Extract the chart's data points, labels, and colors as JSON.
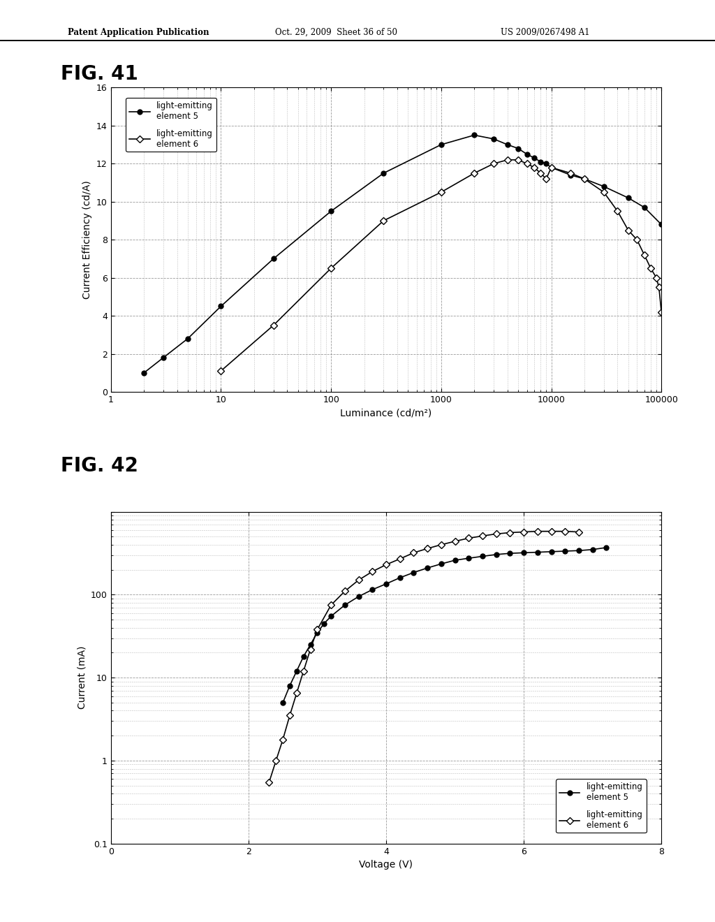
{
  "header_left": "Patent Application Publication",
  "header_mid": "Oct. 29, 2009  Sheet 36 of 50",
  "header_right": "US 2009/0267498 A1",
  "fig41_label": "FIG. 41",
  "fig42_label": "FIG. 42",
  "fig41": {
    "xlabel": "Luminance (cd/m²)",
    "ylabel": "Current Efficiency (cd/A)",
    "ylim": [
      0,
      16
    ],
    "yticks": [
      0,
      2,
      4,
      6,
      8,
      10,
      12,
      14,
      16
    ],
    "xticks": [
      1,
      10,
      100,
      1000,
      10000,
      100000
    ],
    "xticklabels": [
      "1",
      "10",
      "100",
      "1000",
      "10000",
      "100000"
    ],
    "legend1": "light-emitting\nelement 5",
    "legend2": "light-emitting\nelement 6",
    "elem5_x": [
      2,
      3,
      5,
      10,
      30,
      100,
      300,
      1000,
      2000,
      3000,
      4000,
      5000,
      6000,
      7000,
      8000,
      9000,
      10000,
      15000,
      20000,
      30000,
      50000,
      70000,
      100000
    ],
    "elem5_y": [
      1.0,
      1.8,
      2.8,
      4.5,
      7.0,
      9.5,
      11.5,
      13.0,
      13.5,
      13.3,
      13.0,
      12.8,
      12.5,
      12.3,
      12.1,
      12.0,
      11.8,
      11.4,
      11.2,
      10.8,
      10.2,
      9.7,
      8.8
    ],
    "elem6_x": [
      10,
      30,
      100,
      300,
      1000,
      2000,
      3000,
      4000,
      5000,
      6000,
      7000,
      8000,
      9000,
      10000,
      15000,
      20000,
      30000,
      40000,
      50000,
      60000,
      70000,
      80000,
      90000,
      95000,
      100000
    ],
    "elem6_y": [
      1.1,
      3.5,
      6.5,
      9.0,
      10.5,
      11.5,
      12.0,
      12.2,
      12.2,
      12.0,
      11.8,
      11.5,
      11.2,
      11.8,
      11.5,
      11.2,
      10.5,
      9.5,
      8.5,
      8.0,
      7.2,
      6.5,
      6.0,
      5.5,
      4.2
    ]
  },
  "fig42": {
    "xlabel": "Voltage (V)",
    "ylabel": "Current (mA)",
    "ylim_log": [
      0.01,
      100
    ],
    "xlim": [
      0,
      8
    ],
    "xticks": [
      0,
      2,
      4,
      6,
      8
    ],
    "legend1": "light-emitting\nelement 5",
    "legend2": "light-emitting\nelement 6",
    "elem5_x": [
      2.5,
      2.6,
      2.7,
      2.8,
      2.9,
      3.0,
      3.1,
      3.2,
      3.4,
      3.6,
      3.8,
      4.0,
      4.2,
      4.4,
      4.6,
      4.8,
      5.0,
      5.2,
      5.4,
      5.6,
      5.8,
      6.0,
      6.2,
      6.4,
      6.6,
      6.8,
      7.0,
      7.2
    ],
    "elem5_y": [
      0.5,
      0.8,
      1.2,
      1.8,
      2.5,
      3.5,
      4.5,
      5.5,
      7.5,
      9.5,
      11.5,
      13.5,
      16.0,
      18.5,
      21.0,
      23.5,
      26.0,
      27.5,
      29.0,
      30.5,
      31.5,
      32.0,
      32.5,
      33.0,
      33.5,
      34.0,
      35.0,
      37.0
    ],
    "elem6_x": [
      2.3,
      2.4,
      2.5,
      2.6,
      2.7,
      2.8,
      2.9,
      3.0,
      3.2,
      3.4,
      3.6,
      3.8,
      4.0,
      4.2,
      4.4,
      4.6,
      4.8,
      5.0,
      5.2,
      5.4,
      5.6,
      5.8,
      6.0,
      6.2,
      6.4,
      6.6,
      6.8
    ],
    "elem6_y": [
      0.055,
      0.1,
      0.18,
      0.35,
      0.65,
      1.2,
      2.2,
      3.8,
      7.5,
      11.0,
      15.0,
      19.0,
      23.0,
      27.0,
      32.0,
      36.0,
      40.0,
      44.0,
      48.0,
      51.0,
      54.0,
      56.0,
      57.0,
      58.0,
      58.0,
      58.0,
      57.0
    ]
  },
  "bg": "#ffffff"
}
